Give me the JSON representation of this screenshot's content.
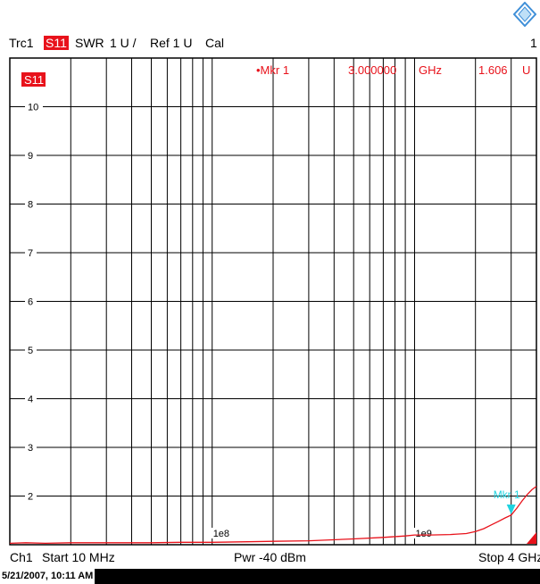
{
  "header": {
    "trace": "Trc1",
    "param": "S11",
    "format": "SWR",
    "scale": "1 U /",
    "ref": "Ref 1 U",
    "cal": "Cal",
    "channel_number": "1"
  },
  "footer": {
    "channel": "Ch1",
    "start": "Start  10 MHz",
    "power": "Pwr  -40 dBm",
    "stop": "Stop  4 GHz"
  },
  "timestamp": "5/21/2007, 10:11 AM",
  "colors": {
    "trace": "#e8121b",
    "marker": "#1fd3e0",
    "grid": "#000000",
    "background": "#ffffff"
  },
  "logo": {
    "icon": "rohde-schwarz-diamond-icon"
  },
  "chart_data": {
    "type": "line",
    "x_scale": "log",
    "xlim": [
      10,
      4000
    ],
    "ylim": [
      1,
      11
    ],
    "grid": true,
    "trace_tag": "S11",
    "y_ticks": [
      "2",
      "3",
      "4",
      "5",
      "6",
      "7",
      "8",
      "9",
      "10"
    ],
    "x_tick_labels": [
      {
        "x": 100,
        "label": "1e8"
      },
      {
        "x": 1000,
        "label": "1e9"
      }
    ],
    "series": [
      {
        "x": [
          10,
          12,
          15,
          20,
          30,
          50,
          70,
          100,
          150,
          200,
          300,
          500,
          700,
          900,
          1000,
          1200,
          1500,
          1800,
          2000,
          2200,
          2400,
          2600,
          2800,
          3000,
          3200,
          3400,
          3600,
          3800,
          4000
        ],
        "values": [
          1.03,
          1.04,
          1.03,
          1.04,
          1.04,
          1.04,
          1.05,
          1.05,
          1.06,
          1.07,
          1.08,
          1.12,
          1.15,
          1.18,
          1.2,
          1.2,
          1.21,
          1.23,
          1.27,
          1.33,
          1.41,
          1.48,
          1.55,
          1.61,
          1.75,
          1.9,
          2.03,
          2.13,
          2.2
        ]
      }
    ],
    "marker": {
      "label": "Mkr 1",
      "readout_name": "•Mkr 1",
      "readout_freq": "3.000000",
      "readout_freq_unit": "GHz",
      "readout_value": "1.606",
      "readout_value_unit": "U",
      "x": 3000,
      "y": 1.606
    }
  }
}
